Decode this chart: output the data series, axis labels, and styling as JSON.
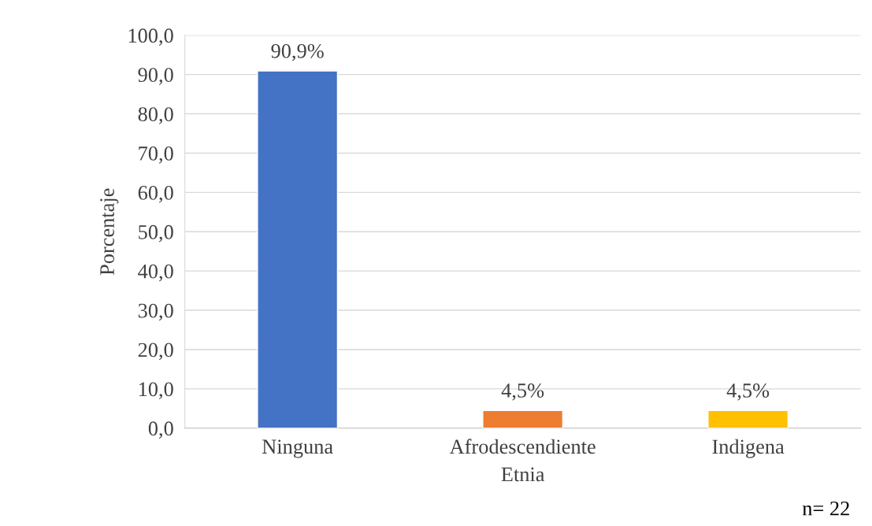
{
  "chart_data": {
    "type": "bar",
    "categories": [
      "Ninguna",
      "Afrodescendiente",
      "Indigena"
    ],
    "values": [
      90.9,
      4.5,
      4.5
    ],
    "colors": [
      "#4472c4",
      "#ed7d31",
      "#ffc000"
    ],
    "value_labels": [
      "90,9%",
      "4,5%",
      "4,5%"
    ],
    "xlabel": "Etnia",
    "ylabel": "Porcentaje",
    "ylim": [
      0,
      100
    ],
    "yticks": [
      {
        "value": 0,
        "label": "0,0"
      },
      {
        "value": 10,
        "label": "10,0"
      },
      {
        "value": 20,
        "label": "20,0"
      },
      {
        "value": 30,
        "label": "30,0"
      },
      {
        "value": 40,
        "label": "40,0"
      },
      {
        "value": 50,
        "label": "50,0"
      },
      {
        "value": 60,
        "label": "60,0"
      },
      {
        "value": 70,
        "label": "70,0"
      },
      {
        "value": 80,
        "label": "80,0"
      },
      {
        "value": 90,
        "label": "90,0"
      },
      {
        "value": 100,
        "label": "100,0"
      }
    ],
    "grid": "y",
    "annotations": [
      "n= 22"
    ]
  }
}
